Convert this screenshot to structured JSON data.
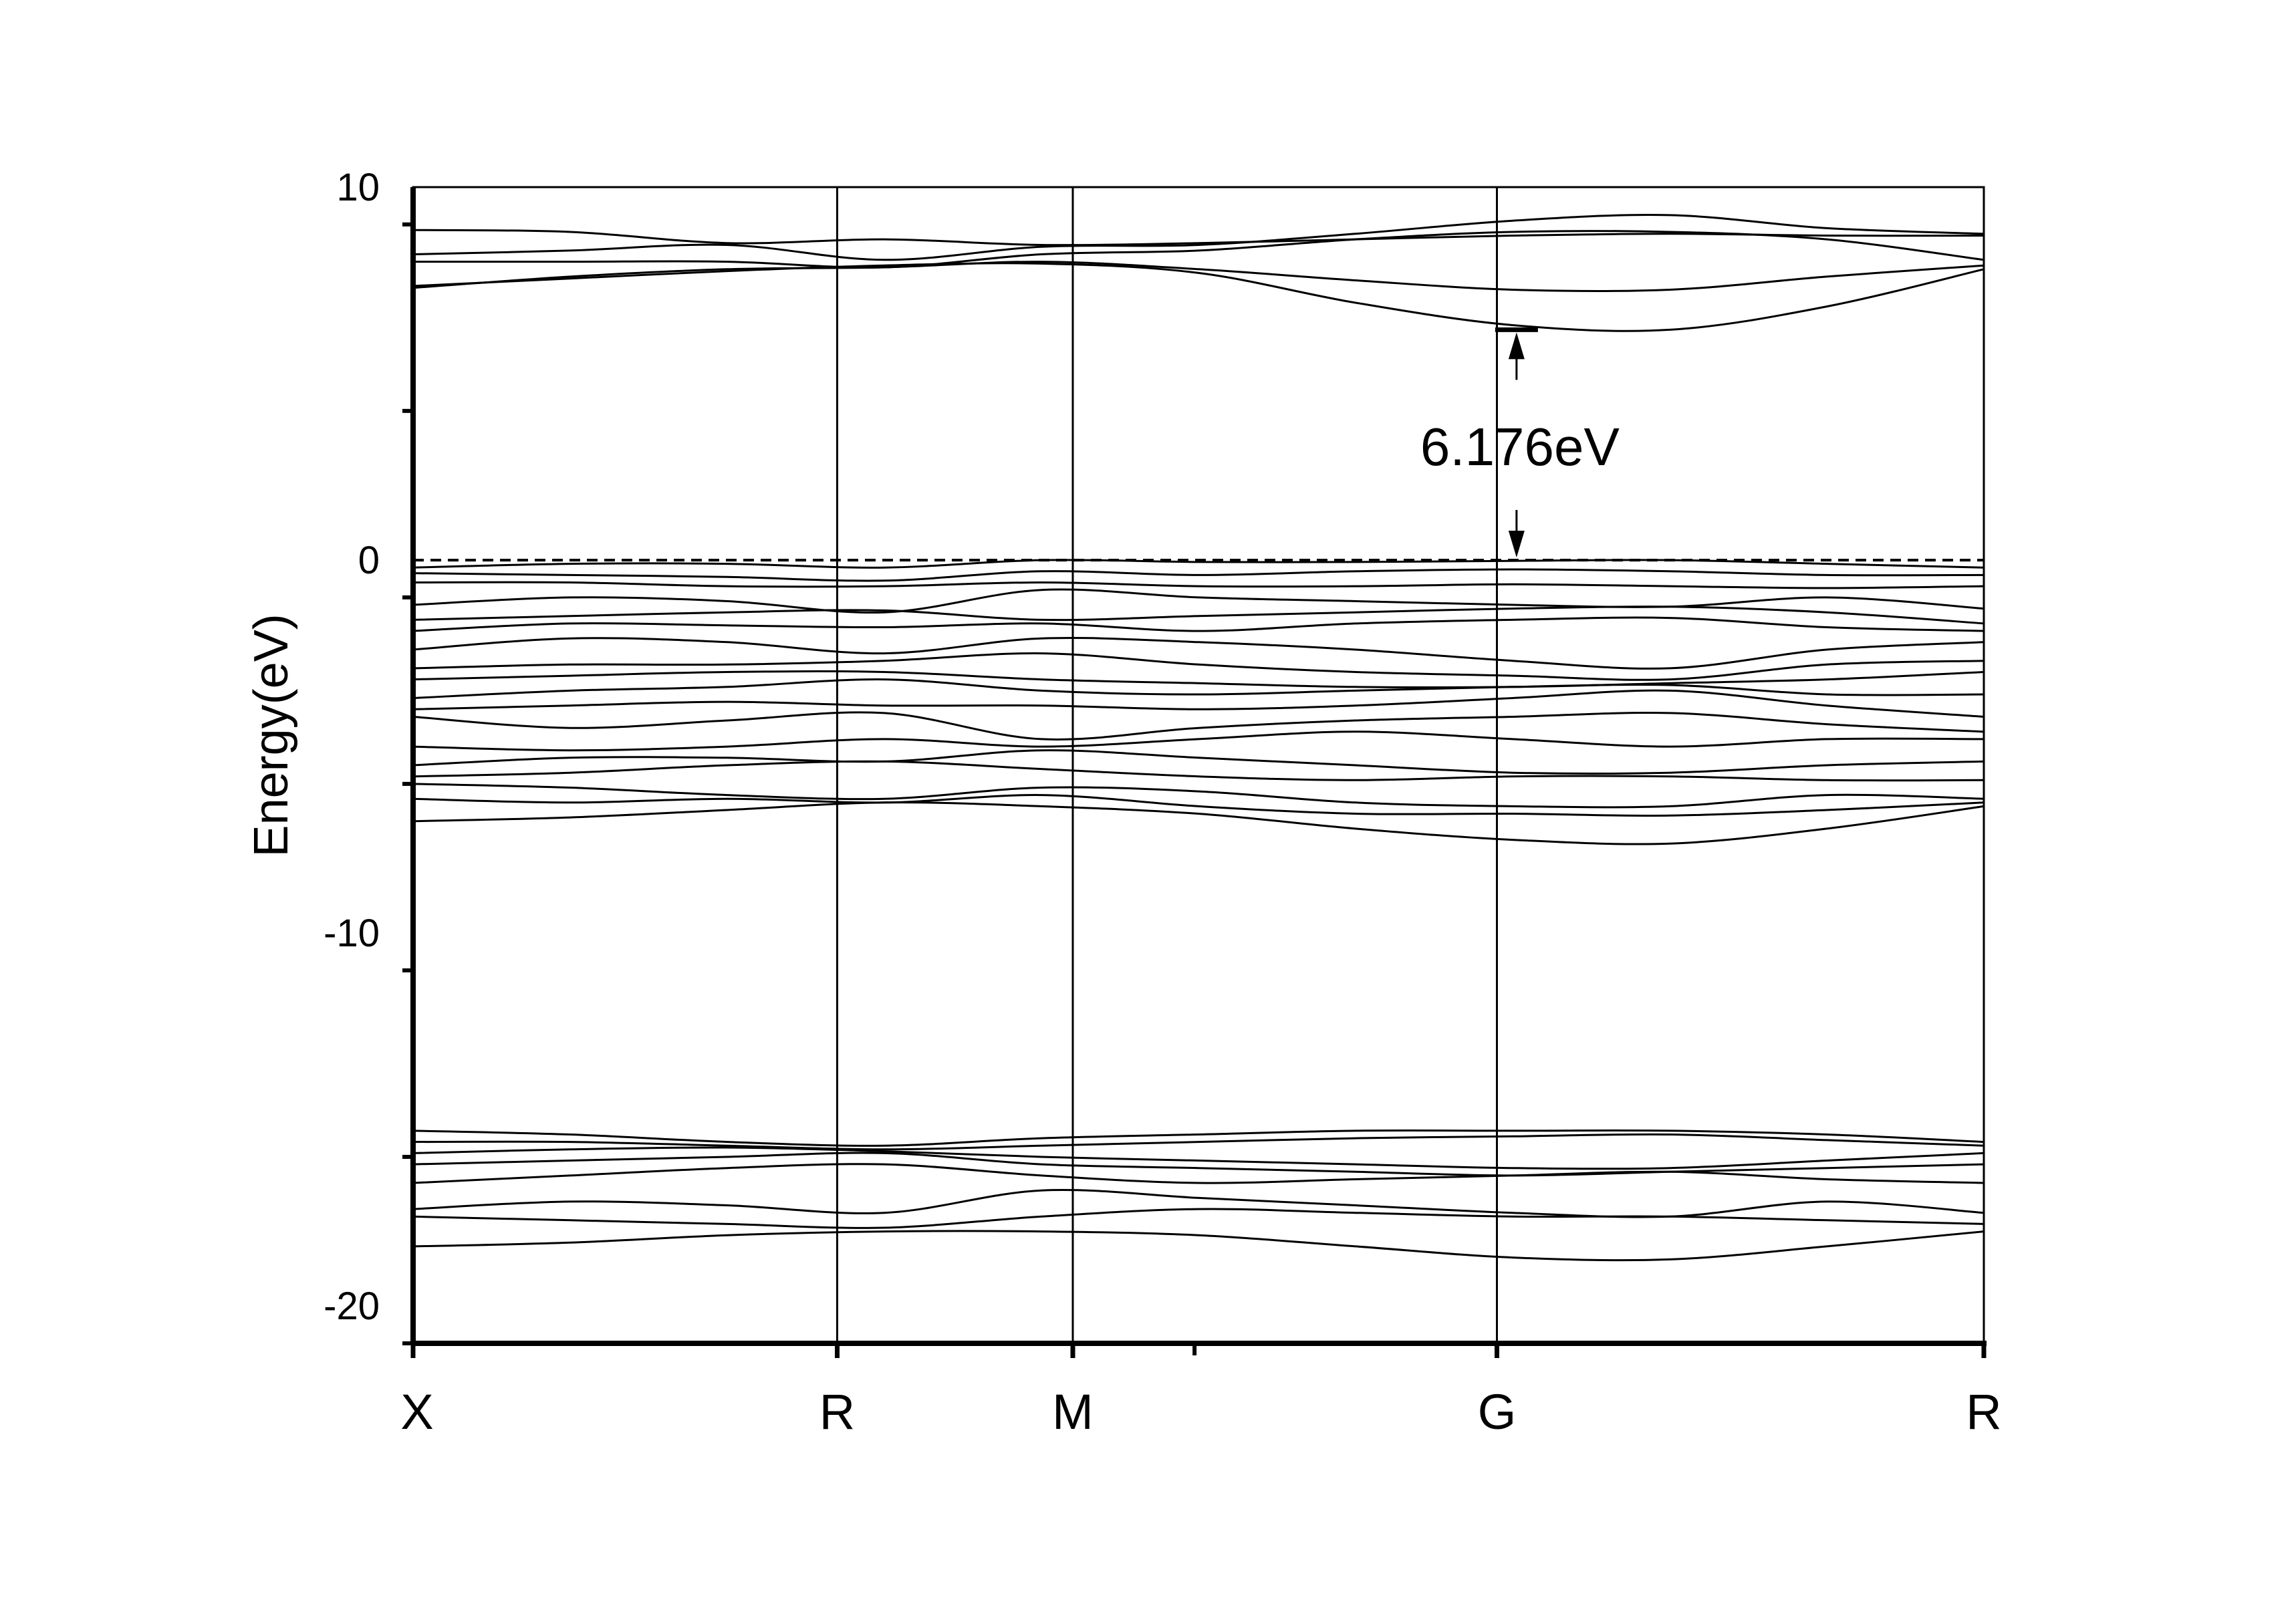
{
  "chart_data": {
    "type": "line",
    "title": "",
    "xlabel": "",
    "ylabel": "Energy(eV)",
    "ylim": [
      -21,
      10
    ],
    "yticks": [
      10,
      0,
      -10,
      -20
    ],
    "ytick_labels": [
      "10",
      "0",
      "-10",
      "-20"
    ],
    "xlim": [
      0,
      4
    ],
    "kpoints": [
      {
        "label": "X",
        "pos": 0
      },
      {
        "label": "R",
        "pos": 1.08
      },
      {
        "label": "M",
        "pos": 1.68
      },
      {
        "label": "G",
        "pos": 2.76
      },
      {
        "label": "R",
        "pos": 4
      }
    ],
    "fermi_level": 0,
    "band_gap": {
      "label": "6.176eV",
      "value": 6.176,
      "at_k": "G",
      "vbm": 0,
      "cbm": 6.176
    },
    "colors": {
      "line": "#000000",
      "background": "#ffffff"
    },
    "grid": false,
    "legend": "none",
    "series": [
      {
        "values": [
          8.85,
          8.8,
          8.5,
          8.6,
          8.45,
          8.5,
          8.6,
          8.7,
          8.75,
          8.7,
          8.7
        ]
      },
      {
        "values": [
          8.2,
          8.3,
          8.45,
          8.05,
          8.4,
          8.45,
          8.75,
          9.1,
          9.25,
          8.9,
          8.75
        ]
      },
      {
        "values": [
          8.0,
          8.0,
          8.0,
          7.85,
          8.2,
          8.3,
          8.6,
          8.8,
          8.8,
          8.6,
          8.05
        ]
      },
      {
        "values": [
          7.3,
          7.6,
          7.8,
          7.85,
          8.0,
          7.8,
          7.5,
          7.25,
          7.25,
          7.6,
          7.9
        ]
      },
      {
        "values": [
          7.35,
          7.55,
          7.75,
          7.9,
          7.95,
          7.7,
          6.9,
          6.3,
          6.176,
          6.8,
          7.8
        ]
      },
      {
        "values": [
          -0.2,
          -0.1,
          -0.1,
          -0.2,
          0.0,
          -0.05,
          -0.05,
          -0.02,
          0.0,
          -0.1,
          -0.2
        ]
      },
      {
        "values": [
          -0.35,
          -0.4,
          -0.45,
          -0.55,
          -0.3,
          -0.4,
          -0.3,
          -0.25,
          -0.3,
          -0.4,
          -0.4
        ]
      },
      {
        "values": [
          -0.6,
          -0.6,
          -0.7,
          -0.7,
          -0.6,
          -0.7,
          -0.7,
          -0.65,
          -0.7,
          -0.75,
          -0.7
        ]
      },
      {
        "values": [
          -1.2,
          -1.0,
          -1.1,
          -1.4,
          -0.8,
          -1.0,
          -1.1,
          -1.2,
          -1.25,
          -1.0,
          -1.3
        ]
      },
      {
        "values": [
          -1.6,
          -1.5,
          -1.4,
          -1.35,
          -1.6,
          -1.5,
          -1.4,
          -1.3,
          -1.25,
          -1.4,
          -1.7
        ]
      },
      {
        "values": [
          -1.9,
          -1.7,
          -1.75,
          -1.8,
          -1.7,
          -1.9,
          -1.7,
          -1.6,
          -1.55,
          -1.8,
          -1.9
        ]
      },
      {
        "values": [
          -2.4,
          -2.1,
          -2.2,
          -2.5,
          -2.1,
          -2.2,
          -2.4,
          -2.7,
          -2.9,
          -2.4,
          -2.2
        ]
      },
      {
        "values": [
          -2.9,
          -2.8,
          -2.8,
          -2.7,
          -2.5,
          -2.8,
          -3.0,
          -3.1,
          -3.2,
          -2.8,
          -2.7
        ]
      },
      {
        "values": [
          -3.2,
          -3.1,
          -3.0,
          -3.0,
          -3.2,
          -3.3,
          -3.4,
          -3.4,
          -3.3,
          -3.2,
          -3.0
        ]
      },
      {
        "values": [
          -3.7,
          -3.5,
          -3.4,
          -3.2,
          -3.5,
          -3.6,
          -3.5,
          -3.4,
          -3.35,
          -3.6,
          -3.6
        ]
      },
      {
        "values": [
          -4.0,
          -3.9,
          -3.8,
          -3.9,
          -3.9,
          -4.0,
          -3.9,
          -3.7,
          -3.5,
          -3.9,
          -4.2
        ]
      },
      {
        "values": [
          -4.2,
          -4.5,
          -4.3,
          -4.1,
          -4.8,
          -4.5,
          -4.3,
          -4.2,
          -4.1,
          -4.4,
          -4.6
        ]
      },
      {
        "values": [
          -5.0,
          -5.1,
          -5.0,
          -4.8,
          -5.0,
          -4.8,
          -4.6,
          -4.8,
          -5.0,
          -4.8,
          -4.8
        ]
      },
      {
        "values": [
          -5.5,
          -5.3,
          -5.3,
          -5.4,
          -5.1,
          -5.3,
          -5.5,
          -5.7,
          -5.7,
          -5.5,
          -5.4
        ]
      },
      {
        "values": [
          -5.8,
          -5.7,
          -5.5,
          -5.4,
          -5.6,
          -5.8,
          -5.9,
          -5.8,
          -5.8,
          -5.9,
          -5.9
        ]
      },
      {
        "values": [
          -6.0,
          -6.1,
          -6.3,
          -6.4,
          -6.1,
          -6.2,
          -6.5,
          -6.6,
          -6.6,
          -6.3,
          -6.4
        ]
      },
      {
        "values": [
          -6.4,
          -6.5,
          -6.4,
          -6.5,
          -6.3,
          -6.6,
          -6.8,
          -6.8,
          -6.85,
          -6.7,
          -6.5
        ]
      },
      {
        "values": [
          -7.0,
          -6.9,
          -6.7,
          -6.5,
          -6.6,
          -6.8,
          -7.2,
          -7.5,
          -7.6,
          -7.2,
          -6.6
        ]
      },
      {
        "values": [
          -15.3,
          -15.4,
          -15.6,
          -15.7,
          -15.5,
          -15.4,
          -15.3,
          -15.3,
          -15.3,
          -15.4,
          -15.6
        ]
      },
      {
        "values": [
          -15.6,
          -15.6,
          -15.7,
          -15.8,
          -15.7,
          -15.6,
          -15.5,
          -15.45,
          -15.4,
          -15.55,
          -15.7
        ]
      },
      {
        "values": [
          -15.9,
          -15.8,
          -15.75,
          -15.85,
          -16.0,
          -16.1,
          -16.2,
          -16.3,
          -16.3,
          -16.1,
          -15.9
        ]
      },
      {
        "values": [
          -16.2,
          -16.1,
          -16.0,
          -15.9,
          -16.2,
          -16.3,
          -16.4,
          -16.5,
          -16.4,
          -16.3,
          -16.2
        ]
      },
      {
        "values": [
          -16.7,
          -16.5,
          -16.3,
          -16.2,
          -16.5,
          -16.7,
          -16.6,
          -16.5,
          -16.4,
          -16.6,
          -16.7
        ]
      },
      {
        "values": [
          -17.4,
          -17.2,
          -17.3,
          -17.5,
          -16.9,
          -17.1,
          -17.3,
          -17.5,
          -17.6,
          -17.2,
          -17.5
        ]
      },
      {
        "values": [
          -17.6,
          -17.7,
          -17.8,
          -17.9,
          -17.6,
          -17.4,
          -17.5,
          -17.6,
          -17.6,
          -17.7,
          -17.8
        ]
      },
      {
        "values": [
          -18.4,
          -18.3,
          -18.1,
          -18.0,
          -18.0,
          -18.1,
          -18.4,
          -18.7,
          -18.75,
          -18.4,
          -18.0
        ]
      }
    ]
  }
}
